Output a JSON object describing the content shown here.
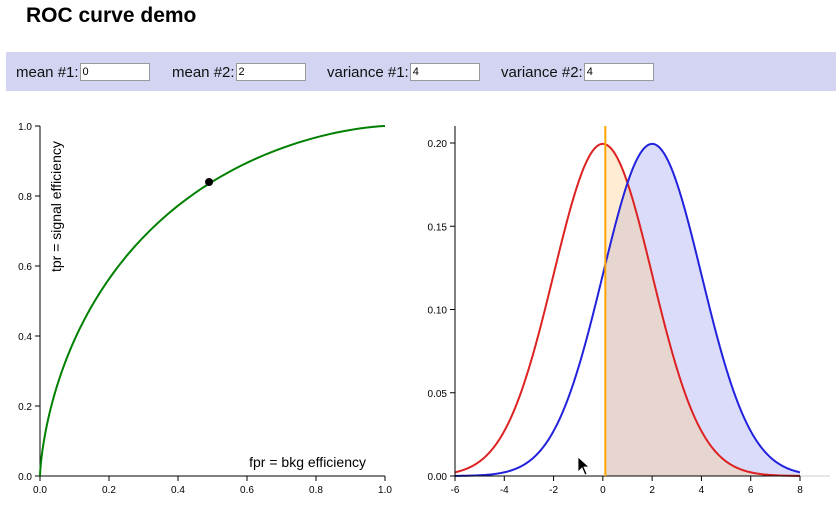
{
  "title": "ROC curve demo",
  "controls": [
    {
      "label": "mean #1:",
      "value": "0"
    },
    {
      "label": "mean #2:",
      "value": "2"
    },
    {
      "label": "variance #1:",
      "value": "4"
    },
    {
      "label": "variance #2:",
      "value": "4"
    }
  ],
  "colors": {
    "roc": "#008000",
    "bkg": "#dd2222",
    "signal": "#2222dd",
    "cut": "#ffa500",
    "panel": "#d2d4f2"
  },
  "chart_data": [
    {
      "type": "line",
      "xlabel": "fpr = bkg efficiency",
      "ylabel": "tpr = signal efficiency",
      "xlim": [
        0,
        1
      ],
      "ylim": [
        0,
        1
      ],
      "xticks": [
        "0.0",
        "0.2",
        "0.4",
        "0.6",
        "0.8",
        "1.0"
      ],
      "yticks": [
        "0.0",
        "0.2",
        "0.4",
        "0.6",
        "0.8",
        "1.0"
      ],
      "marker": {
        "x": 0.49,
        "y": 0.84
      }
    },
    {
      "type": "line",
      "xlim": [
        -6,
        8
      ],
      "ylim": [
        0,
        0.2
      ],
      "xticks": [
        "-6",
        "-4",
        "-2",
        "0",
        "2",
        "4",
        "6",
        "8"
      ],
      "yticks": [
        "0.00",
        "0.05",
        "0.10",
        "0.15",
        "0.20"
      ],
      "cut": 0.1,
      "series": [
        {
          "mean": 0,
          "variance": 4
        },
        {
          "mean": 2,
          "variance": 4
        }
      ]
    }
  ]
}
